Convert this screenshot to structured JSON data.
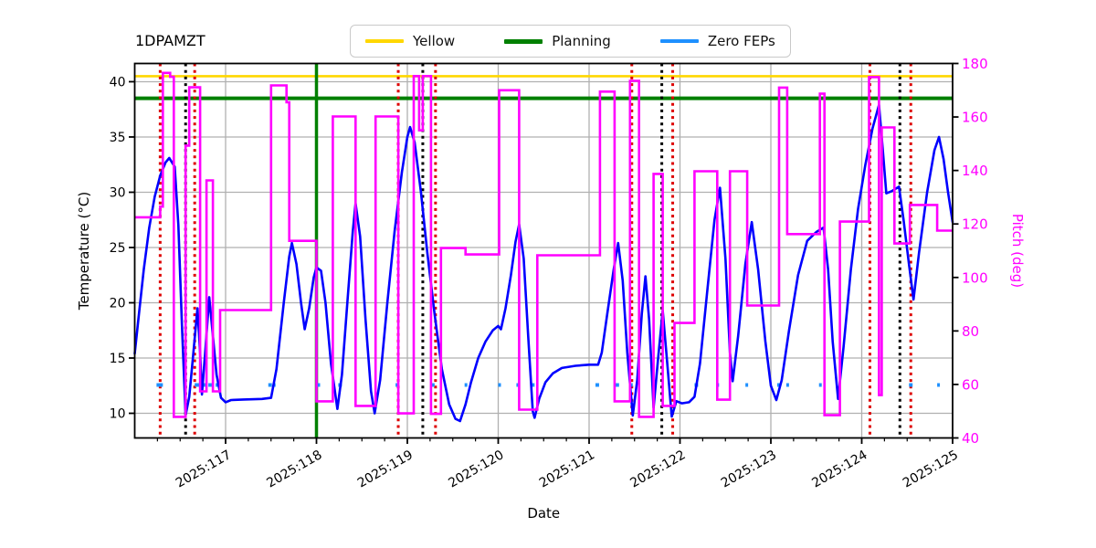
{
  "title": "1DPAMZT",
  "legend": {
    "items": [
      {
        "label": "Yellow",
        "color": "#ffd700",
        "thickness": 3.5
      },
      {
        "label": "Planning",
        "color": "#008000",
        "thickness": 5
      },
      {
        "label": "Zero FEPs",
        "color": "#1e90ff",
        "thickness": 4
      }
    ]
  },
  "axes": {
    "xlabel": "Date",
    "ylabel_left": "Temperature (°C)",
    "ylabel_right": "Pitch (deg)",
    "xlim": [
      116,
      125
    ],
    "ylim_left": [
      7.77,
      41.65
    ],
    "ylim_right": [
      40,
      180
    ],
    "x_ticks": [
      {
        "day": 117,
        "label": "2025:117"
      },
      {
        "day": 118,
        "label": "2025:118"
      },
      {
        "day": 119,
        "label": "2025:119"
      },
      {
        "day": 120,
        "label": "2025:120"
      },
      {
        "day": 121,
        "label": "2025:121"
      },
      {
        "day": 122,
        "label": "2025:122"
      },
      {
        "day": 123,
        "label": "2025:123"
      },
      {
        "day": 124,
        "label": "2025:124"
      },
      {
        "day": 125,
        "label": "2025:125"
      }
    ],
    "x_minor_step": 0.25,
    "y_ticks_left": [
      10,
      15,
      20,
      25,
      30,
      35,
      40
    ],
    "y_ticks_right": [
      40,
      60,
      80,
      100,
      120,
      140,
      160,
      180
    ],
    "grid": true,
    "grid_color": "#b0b0b0",
    "right_axis_color": "#ff00ff"
  },
  "chart_data": {
    "type": "line",
    "title": "1DPAMZT",
    "xlabel": "Date",
    "ylabel": "Temperature (°C)",
    "ylabel2": "Pitch (deg)",
    "series": [
      {
        "name": "temperature",
        "axis": "left",
        "color": "#0000ff",
        "style": "line",
        "points": [
          [
            116.0,
            15.4
          ],
          [
            116.04,
            18.5
          ],
          [
            116.1,
            23.0
          ],
          [
            116.16,
            26.8
          ],
          [
            116.22,
            29.6
          ],
          [
            116.28,
            31.5
          ],
          [
            116.34,
            32.7
          ],
          [
            116.38,
            33.1
          ],
          [
            116.44,
            32.3
          ],
          [
            116.48,
            27.0
          ],
          [
            116.52,
            18.0
          ],
          [
            116.56,
            9.8
          ],
          [
            116.6,
            11.5
          ],
          [
            116.64,
            15.0
          ],
          [
            116.69,
            19.5
          ],
          [
            116.72,
            15.5
          ],
          [
            116.74,
            11.7
          ],
          [
            116.78,
            16.0
          ],
          [
            116.82,
            20.5
          ],
          [
            116.86,
            17.0
          ],
          [
            116.9,
            13.5
          ],
          [
            116.95,
            11.4
          ],
          [
            117.0,
            11.0
          ],
          [
            117.06,
            11.2
          ],
          [
            117.2,
            11.25
          ],
          [
            117.4,
            11.3
          ],
          [
            117.5,
            11.4
          ],
          [
            117.56,
            14.0
          ],
          [
            117.64,
            20.0
          ],
          [
            117.7,
            24.2
          ],
          [
            117.73,
            25.4
          ],
          [
            117.78,
            23.5
          ],
          [
            117.83,
            20.0
          ],
          [
            117.87,
            17.6
          ],
          [
            117.92,
            19.5
          ],
          [
            117.97,
            22.3
          ],
          [
            118.0,
            23.2
          ],
          [
            118.05,
            22.9
          ],
          [
            118.1,
            20.0
          ],
          [
            118.16,
            14.5
          ],
          [
            118.23,
            10.4
          ],
          [
            118.28,
            13.5
          ],
          [
            118.34,
            20.0
          ],
          [
            118.4,
            26.5
          ],
          [
            118.43,
            29.0
          ],
          [
            118.48,
            26.0
          ],
          [
            118.54,
            18.5
          ],
          [
            118.6,
            12.0
          ],
          [
            118.64,
            10.0
          ],
          [
            118.7,
            13.0
          ],
          [
            118.78,
            20.0
          ],
          [
            118.86,
            26.5
          ],
          [
            118.94,
            31.8
          ],
          [
            119.0,
            35.0
          ],
          [
            119.03,
            35.9
          ],
          [
            119.08,
            34.5
          ],
          [
            119.15,
            30.0
          ],
          [
            119.22,
            24.5
          ],
          [
            119.3,
            19.0
          ],
          [
            119.38,
            14.0
          ],
          [
            119.46,
            10.8
          ],
          [
            119.53,
            9.5
          ],
          [
            119.58,
            9.3
          ],
          [
            119.64,
            10.8
          ],
          [
            119.7,
            12.8
          ],
          [
            119.78,
            15.0
          ],
          [
            119.86,
            16.5
          ],
          [
            119.94,
            17.5
          ],
          [
            120.0,
            17.9
          ],
          [
            120.03,
            17.6
          ],
          [
            120.08,
            19.5
          ],
          [
            120.14,
            22.5
          ],
          [
            120.19,
            25.5
          ],
          [
            120.23,
            27.1
          ],
          [
            120.28,
            24.0
          ],
          [
            120.33,
            17.0
          ],
          [
            120.38,
            10.2
          ],
          [
            120.4,
            9.6
          ],
          [
            120.45,
            11.3
          ],
          [
            120.52,
            12.8
          ],
          [
            120.6,
            13.6
          ],
          [
            120.7,
            14.1
          ],
          [
            120.85,
            14.3
          ],
          [
            121.0,
            14.4
          ],
          [
            121.1,
            14.4
          ],
          [
            121.14,
            15.5
          ],
          [
            121.2,
            19.0
          ],
          [
            121.27,
            23.0
          ],
          [
            121.32,
            25.4
          ],
          [
            121.37,
            22.0
          ],
          [
            121.42,
            15.5
          ],
          [
            121.48,
            9.8
          ],
          [
            121.53,
            13.0
          ],
          [
            121.58,
            19.0
          ],
          [
            121.62,
            22.4
          ],
          [
            121.66,
            18.5
          ],
          [
            121.71,
            10.5
          ],
          [
            121.76,
            15.0
          ],
          [
            121.81,
            19.3
          ],
          [
            121.86,
            14.5
          ],
          [
            121.91,
            9.7
          ],
          [
            121.96,
            11.1
          ],
          [
            122.02,
            10.9
          ],
          [
            122.1,
            11.0
          ],
          [
            122.16,
            11.5
          ],
          [
            122.22,
            14.5
          ],
          [
            122.3,
            21.0
          ],
          [
            122.38,
            27.5
          ],
          [
            122.44,
            30.4
          ],
          [
            122.5,
            24.0
          ],
          [
            122.55,
            15.5
          ],
          [
            122.58,
            12.9
          ],
          [
            122.64,
            17.0
          ],
          [
            122.72,
            23.5
          ],
          [
            122.79,
            27.3
          ],
          [
            122.86,
            23.0
          ],
          [
            122.94,
            16.5
          ],
          [
            123.0,
            12.5
          ],
          [
            123.06,
            11.2
          ],
          [
            123.12,
            13.0
          ],
          [
            123.2,
            17.5
          ],
          [
            123.3,
            22.5
          ],
          [
            123.4,
            25.6
          ],
          [
            123.5,
            26.4
          ],
          [
            123.58,
            26.8
          ],
          [
            123.63,
            23.0
          ],
          [
            123.68,
            16.5
          ],
          [
            123.74,
            11.3
          ],
          [
            123.8,
            16.0
          ],
          [
            123.88,
            23.0
          ],
          [
            123.96,
            28.5
          ],
          [
            124.04,
            32.5
          ],
          [
            124.12,
            35.8
          ],
          [
            124.19,
            37.9
          ],
          [
            124.23,
            34.0
          ],
          [
            124.27,
            29.9
          ],
          [
            124.33,
            30.1
          ],
          [
            124.41,
            30.5
          ],
          [
            124.46,
            27.5
          ],
          [
            124.52,
            23.5
          ],
          [
            124.57,
            20.3
          ],
          [
            124.63,
            24.5
          ],
          [
            124.72,
            30.0
          ],
          [
            124.8,
            33.8
          ],
          [
            124.85,
            35.0
          ],
          [
            124.9,
            33.0
          ],
          [
            124.95,
            30.0
          ],
          [
            125.0,
            27.3
          ]
        ]
      },
      {
        "name": "pitch",
        "axis": "right",
        "color": "#ff00ff",
        "style": "step",
        "points": [
          [
            116.0,
            122.5
          ],
          [
            116.28,
            126.5
          ],
          [
            116.31,
            176.5
          ],
          [
            116.39,
            175.0
          ],
          [
            116.43,
            47.9
          ],
          [
            116.56,
            149.3
          ],
          [
            116.6,
            171.1
          ],
          [
            116.72,
            57.4
          ],
          [
            116.79,
            136.3
          ],
          [
            116.86,
            57.4
          ],
          [
            116.94,
            87.8
          ],
          [
            117.5,
            171.8
          ],
          [
            117.67,
            165.5
          ],
          [
            117.7,
            113.7
          ],
          [
            118.0,
            53.7
          ],
          [
            118.18,
            160.2
          ],
          [
            118.43,
            52.0
          ],
          [
            118.65,
            160.2
          ],
          [
            118.9,
            49.2
          ],
          [
            119.07,
            175.3
          ],
          [
            119.13,
            155.0
          ],
          [
            119.17,
            175.3
          ],
          [
            119.26,
            49.0
          ],
          [
            119.37,
            111.0
          ],
          [
            119.64,
            108.6
          ],
          [
            120.01,
            170.0
          ],
          [
            120.23,
            50.6
          ],
          [
            120.43,
            108.3
          ],
          [
            121.12,
            169.5
          ],
          [
            121.28,
            53.7
          ],
          [
            121.45,
            173.5
          ],
          [
            121.55,
            47.9
          ],
          [
            121.71,
            138.7
          ],
          [
            121.81,
            52.0
          ],
          [
            121.94,
            83.0
          ],
          [
            122.16,
            139.7
          ],
          [
            122.41,
            54.3
          ],
          [
            122.55,
            139.7
          ],
          [
            122.74,
            89.5
          ],
          [
            123.09,
            171.0
          ],
          [
            123.18,
            116.2
          ],
          [
            123.54,
            168.7
          ],
          [
            123.59,
            48.5
          ],
          [
            123.76,
            120.9
          ],
          [
            124.08,
            174.9
          ],
          [
            124.19,
            56.0
          ],
          [
            124.22,
            156.1
          ],
          [
            124.36,
            112.7
          ],
          [
            124.53,
            127.1
          ],
          [
            124.83,
            117.5
          ],
          [
            125.0,
            117.5
          ]
        ]
      }
    ],
    "limit_lines": [
      {
        "name": "yellow",
        "axis": "left",
        "value": 40.5,
        "color": "#ffd700"
      },
      {
        "name": "planning",
        "axis": "left",
        "value": 38.5,
        "color": "#008000"
      }
    ],
    "vlines": {
      "green_solid": [
        118.0
      ],
      "red_dotted": [
        116.28,
        116.66,
        118.9,
        119.31,
        121.47,
        121.92,
        124.09,
        124.54
      ],
      "black_dotted": [
        116.56,
        119.17,
        121.8,
        124.42
      ],
      "green_color": "#008000",
      "red_color": "#dd0000",
      "black_color": "#000000"
    },
    "zero_feps": {
      "color": "#1e90ff",
      "value_right": 59.8,
      "segments": [
        [
          116.24,
          116.31
        ],
        [
          116.66,
          116.71
        ],
        [
          116.74,
          116.79
        ],
        [
          116.81,
          116.86
        ],
        [
          116.89,
          116.93
        ],
        [
          117.47,
          117.51
        ],
        [
          117.52,
          117.55
        ],
        [
          118.0,
          118.04
        ],
        [
          118.24,
          118.28
        ],
        [
          118.87,
          118.91
        ],
        [
          119.26,
          119.3
        ],
        [
          119.63,
          119.66
        ],
        [
          120.0,
          120.03
        ],
        [
          120.2,
          120.23
        ],
        [
          120.37,
          120.4
        ],
        [
          121.07,
          121.11
        ],
        [
          121.29,
          121.33
        ],
        [
          121.44,
          121.48
        ],
        [
          122.16,
          122.2
        ],
        [
          122.4,
          122.43
        ],
        [
          122.72,
          122.75
        ],
        [
          123.07,
          123.1
        ],
        [
          123.17,
          123.2
        ],
        [
          123.53,
          123.56
        ],
        [
          124.52,
          124.56
        ],
        [
          124.83,
          124.86
        ]
      ]
    }
  }
}
